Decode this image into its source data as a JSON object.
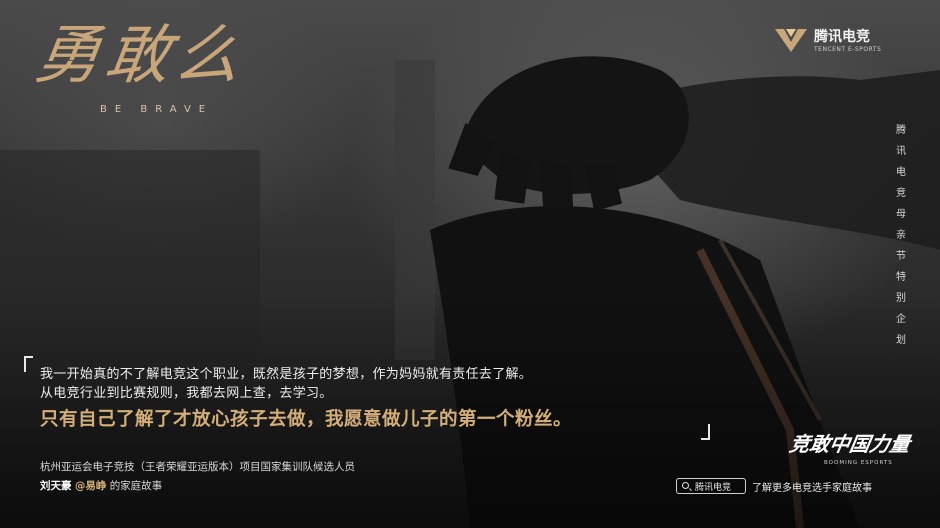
{
  "logo": {
    "title_cn": "勇敢么",
    "title_en": "BE BRAVE"
  },
  "brand": {
    "name_cn": "腾讯电竞",
    "name_en": "TENCENT E-SPORTS"
  },
  "vertical_caption": [
    "腾",
    "讯",
    "电",
    "竞",
    "母",
    "亲",
    "节",
    "特",
    "别",
    "企",
    "划"
  ],
  "quote": {
    "line1": "我一开始真的不了解电竞这个职业，既然是孩子的梦想，作为妈妈就有责任去了解。",
    "line2": "从电竞行业到比赛规则，我都去网上查，去学习。",
    "highlight": "只有自己了解了才放心孩子去做，我愿意做儿子的第一个粉丝。"
  },
  "person": {
    "title": "杭州亚运会电子竞技（王者荣耀亚运版本）项目国家集训队候选人员",
    "name": "刘天豪",
    "nickname": "@易峥",
    "suffix": "的家庭故事"
  },
  "slogan": {
    "cn": "竞敢中国力量",
    "en": "BOOMING ESPORTS"
  },
  "search": {
    "label": "腾讯电竞",
    "hint": "了解更多电竞选手家庭故事"
  },
  "colors": {
    "accent_gold": "#d4ae79",
    "text_light": "#eeeeee"
  }
}
